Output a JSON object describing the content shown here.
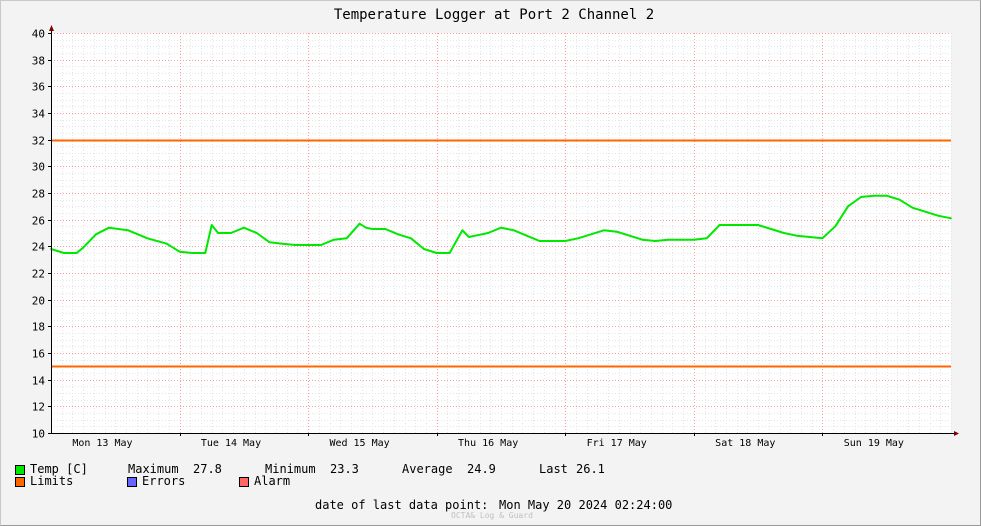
{
  "chart_data": {
    "type": "line",
    "title": "Temperature Logger at Port 2 Channel 2",
    "ylim": [
      10,
      40
    ],
    "y_ticks": [
      10,
      12,
      14,
      16,
      18,
      20,
      22,
      24,
      26,
      28,
      30,
      32,
      34,
      36,
      38,
      40
    ],
    "x_tick_labels": [
      "Mon 13 May",
      "Tue 14 May",
      "Wed 15 May",
      "Thu 16 May",
      "Fri 17 May",
      "Sat 18 May",
      "Sun 19 May"
    ],
    "xlim": [
      0,
      7
    ],
    "grid": true,
    "series": [
      {
        "name": "Temp [C]",
        "color": "#00e800",
        "x": [
          0.0,
          0.1,
          0.2,
          0.25,
          0.35,
          0.45,
          0.6,
          0.75,
          0.9,
          1.0,
          1.1,
          1.2,
          1.25,
          1.3,
          1.4,
          1.5,
          1.6,
          1.7,
          1.8,
          1.9,
          2.0,
          2.1,
          2.2,
          2.3,
          2.4,
          2.45,
          2.5,
          2.6,
          2.7,
          2.8,
          2.9,
          3.0,
          3.1,
          3.2,
          3.25,
          3.3,
          3.4,
          3.5,
          3.6,
          3.7,
          3.8,
          3.9,
          4.0,
          4.1,
          4.2,
          4.3,
          4.4,
          4.5,
          4.6,
          4.7,
          4.8,
          4.9,
          5.0,
          5.1,
          5.2,
          5.3,
          5.4,
          5.5,
          5.6,
          5.7,
          5.8,
          5.9,
          6.0,
          6.1,
          6.2,
          6.3,
          6.4,
          6.5,
          6.6,
          6.7,
          6.8,
          6.9,
          7.0
        ],
        "values": [
          23.8,
          23.5,
          23.5,
          23.9,
          24.9,
          25.4,
          25.2,
          24.6,
          24.2,
          23.6,
          23.5,
          23.5,
          25.6,
          25.0,
          25.0,
          25.4,
          25.0,
          24.3,
          24.2,
          24.1,
          24.1,
          24.1,
          24.5,
          24.6,
          25.7,
          25.4,
          25.3,
          25.3,
          24.9,
          24.6,
          23.8,
          23.5,
          23.5,
          25.2,
          24.7,
          24.8,
          25.0,
          25.4,
          25.2,
          24.8,
          24.4,
          24.4,
          24.4,
          24.6,
          24.9,
          25.2,
          25.1,
          24.8,
          24.5,
          24.4,
          24.5,
          24.5,
          24.5,
          24.6,
          25.6,
          25.6,
          25.6,
          25.6,
          25.3,
          25.0,
          24.8,
          24.7,
          24.6,
          25.5,
          27.0,
          27.7,
          27.8,
          27.8,
          27.5,
          26.9,
          26.6,
          26.3,
          26.1
        ]
      },
      {
        "name": "Limits",
        "color": "#ff6600",
        "hlines": [
          32,
          15
        ]
      },
      {
        "name": "Errors",
        "color": "#6666ff"
      },
      {
        "name": "Alarm",
        "color": "#ff6666"
      }
    ]
  },
  "legend": {
    "temp_label": "Temp [C]",
    "maximum_label": "Maximum",
    "maximum_value": "27.8",
    "minimum_label": "Minimum",
    "minimum_value": "23.3",
    "average_label": "Average",
    "average_value": "24.9",
    "last_label": "Last",
    "last_value": "26.1",
    "limits_label": "Limits",
    "errors_label": "Errors",
    "alarm_label": "Alarm"
  },
  "footer": {
    "last_point_label": "date of last data point:",
    "last_point_value": "Mon May 20 2024 02:24:00",
    "credit": "OCTA& Log & Guard"
  },
  "colors": {
    "background": "#f3f3f3",
    "plot_background": "#ffffff",
    "major_grid": "#ff9c9c",
    "minor_grid": "#e4e4e4",
    "temp": "#00e800",
    "limits": "#ff6600",
    "errors": "#6666ff",
    "alarm": "#ff6666"
  }
}
